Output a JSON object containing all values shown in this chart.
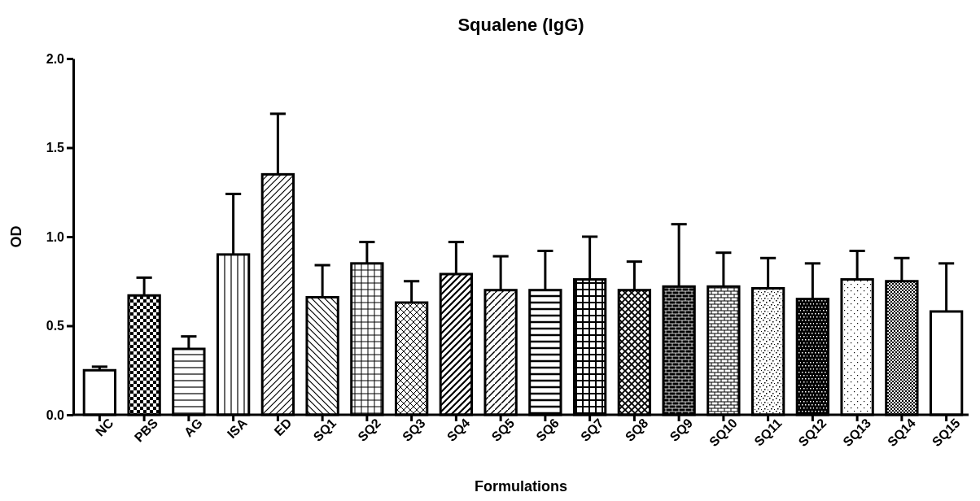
{
  "chart_data": {
    "type": "bar",
    "title": "Squalene (IgG)",
    "xlabel": "Formulations",
    "ylabel": "OD",
    "categories": [
      "NC",
      "PBS",
      "AG",
      "ISA",
      "ED",
      "SQ1",
      "SQ2",
      "SQ3",
      "SQ4",
      "SQ5",
      "SQ6",
      "SQ7",
      "SQ8",
      "SQ9",
      "SQ10",
      "SQ11",
      "SQ12",
      "SQ13",
      "SQ14",
      "SQ15"
    ],
    "values": [
      0.25,
      0.67,
      0.37,
      0.9,
      1.35,
      0.66,
      0.85,
      0.63,
      0.79,
      0.7,
      0.7,
      0.76,
      0.7,
      0.72,
      0.72,
      0.71,
      0.65,
      0.76,
      0.75,
      0.58
    ],
    "errors": [
      [
        0.25,
        0.27
      ],
      [
        0.67,
        0.77
      ],
      [
        0.37,
        0.44
      ],
      [
        0.9,
        1.24
      ],
      [
        1.35,
        1.69
      ],
      [
        0.66,
        0.84
      ],
      [
        0.85,
        0.97
      ],
      [
        0.63,
        0.75
      ],
      [
        0.79,
        0.97
      ],
      [
        0.7,
        0.89
      ],
      [
        0.7,
        0.92
      ],
      [
        0.76,
        1.0
      ],
      [
        0.7,
        0.86
      ],
      [
        0.72,
        1.07
      ],
      [
        0.72,
        0.91
      ],
      [
        0.71,
        0.88
      ],
      [
        0.65,
        0.85
      ],
      [
        0.76,
        0.92
      ],
      [
        0.75,
        0.88
      ],
      [
        0.58,
        0.85
      ]
    ],
    "color": "#000000",
    "ylim": [
      0,
      2.0
    ],
    "yticks": [
      {
        "value": 0,
        "label": "0.0"
      },
      {
        "value": 0.5,
        "label": "0.5"
      },
      {
        "value": 1,
        "label": "1.0"
      },
      {
        "value": 1.5,
        "label": "1.5"
      },
      {
        "value": 2,
        "label": "2.0"
      }
    ],
    "grid": false
  }
}
